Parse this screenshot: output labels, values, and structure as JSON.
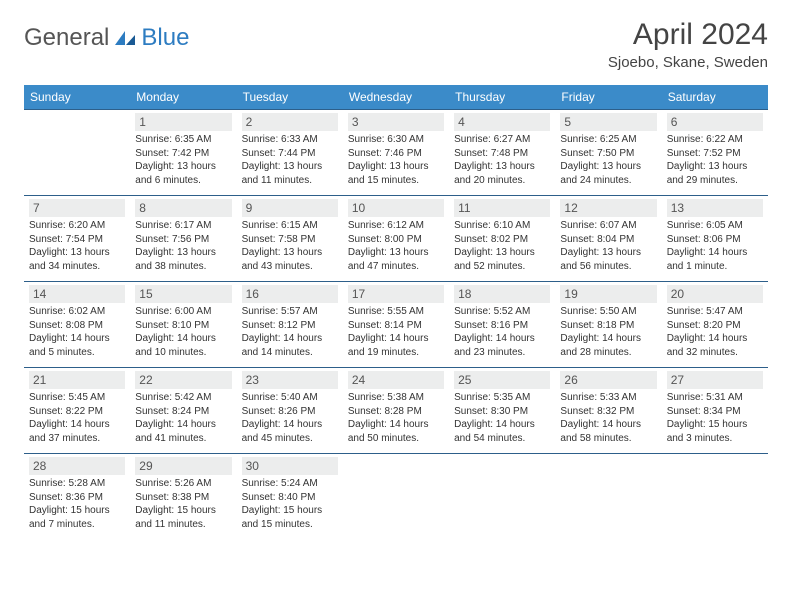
{
  "brand": {
    "name_a": "General",
    "name_b": "Blue"
  },
  "title": "April 2024",
  "location": "Sjoebo, Skane, Sweden",
  "header_bg": "#3b8bc9",
  "weekdays": [
    "Sunday",
    "Monday",
    "Tuesday",
    "Wednesday",
    "Thursday",
    "Friday",
    "Saturday"
  ],
  "weeks": [
    [
      {
        "n": "",
        "sr": "",
        "ss": "",
        "dl": ""
      },
      {
        "n": "1",
        "sr": "Sunrise: 6:35 AM",
        "ss": "Sunset: 7:42 PM",
        "dl": "Daylight: 13 hours and 6 minutes."
      },
      {
        "n": "2",
        "sr": "Sunrise: 6:33 AM",
        "ss": "Sunset: 7:44 PM",
        "dl": "Daylight: 13 hours and 11 minutes."
      },
      {
        "n": "3",
        "sr": "Sunrise: 6:30 AM",
        "ss": "Sunset: 7:46 PM",
        "dl": "Daylight: 13 hours and 15 minutes."
      },
      {
        "n": "4",
        "sr": "Sunrise: 6:27 AM",
        "ss": "Sunset: 7:48 PM",
        "dl": "Daylight: 13 hours and 20 minutes."
      },
      {
        "n": "5",
        "sr": "Sunrise: 6:25 AM",
        "ss": "Sunset: 7:50 PM",
        "dl": "Daylight: 13 hours and 24 minutes."
      },
      {
        "n": "6",
        "sr": "Sunrise: 6:22 AM",
        "ss": "Sunset: 7:52 PM",
        "dl": "Daylight: 13 hours and 29 minutes."
      }
    ],
    [
      {
        "n": "7",
        "sr": "Sunrise: 6:20 AM",
        "ss": "Sunset: 7:54 PM",
        "dl": "Daylight: 13 hours and 34 minutes."
      },
      {
        "n": "8",
        "sr": "Sunrise: 6:17 AM",
        "ss": "Sunset: 7:56 PM",
        "dl": "Daylight: 13 hours and 38 minutes."
      },
      {
        "n": "9",
        "sr": "Sunrise: 6:15 AM",
        "ss": "Sunset: 7:58 PM",
        "dl": "Daylight: 13 hours and 43 minutes."
      },
      {
        "n": "10",
        "sr": "Sunrise: 6:12 AM",
        "ss": "Sunset: 8:00 PM",
        "dl": "Daylight: 13 hours and 47 minutes."
      },
      {
        "n": "11",
        "sr": "Sunrise: 6:10 AM",
        "ss": "Sunset: 8:02 PM",
        "dl": "Daylight: 13 hours and 52 minutes."
      },
      {
        "n": "12",
        "sr": "Sunrise: 6:07 AM",
        "ss": "Sunset: 8:04 PM",
        "dl": "Daylight: 13 hours and 56 minutes."
      },
      {
        "n": "13",
        "sr": "Sunrise: 6:05 AM",
        "ss": "Sunset: 8:06 PM",
        "dl": "Daylight: 14 hours and 1 minute."
      }
    ],
    [
      {
        "n": "14",
        "sr": "Sunrise: 6:02 AM",
        "ss": "Sunset: 8:08 PM",
        "dl": "Daylight: 14 hours and 5 minutes."
      },
      {
        "n": "15",
        "sr": "Sunrise: 6:00 AM",
        "ss": "Sunset: 8:10 PM",
        "dl": "Daylight: 14 hours and 10 minutes."
      },
      {
        "n": "16",
        "sr": "Sunrise: 5:57 AM",
        "ss": "Sunset: 8:12 PM",
        "dl": "Daylight: 14 hours and 14 minutes."
      },
      {
        "n": "17",
        "sr": "Sunrise: 5:55 AM",
        "ss": "Sunset: 8:14 PM",
        "dl": "Daylight: 14 hours and 19 minutes."
      },
      {
        "n": "18",
        "sr": "Sunrise: 5:52 AM",
        "ss": "Sunset: 8:16 PM",
        "dl": "Daylight: 14 hours and 23 minutes."
      },
      {
        "n": "19",
        "sr": "Sunrise: 5:50 AM",
        "ss": "Sunset: 8:18 PM",
        "dl": "Daylight: 14 hours and 28 minutes."
      },
      {
        "n": "20",
        "sr": "Sunrise: 5:47 AM",
        "ss": "Sunset: 8:20 PM",
        "dl": "Daylight: 14 hours and 32 minutes."
      }
    ],
    [
      {
        "n": "21",
        "sr": "Sunrise: 5:45 AM",
        "ss": "Sunset: 8:22 PM",
        "dl": "Daylight: 14 hours and 37 minutes."
      },
      {
        "n": "22",
        "sr": "Sunrise: 5:42 AM",
        "ss": "Sunset: 8:24 PM",
        "dl": "Daylight: 14 hours and 41 minutes."
      },
      {
        "n": "23",
        "sr": "Sunrise: 5:40 AM",
        "ss": "Sunset: 8:26 PM",
        "dl": "Daylight: 14 hours and 45 minutes."
      },
      {
        "n": "24",
        "sr": "Sunrise: 5:38 AM",
        "ss": "Sunset: 8:28 PM",
        "dl": "Daylight: 14 hours and 50 minutes."
      },
      {
        "n": "25",
        "sr": "Sunrise: 5:35 AM",
        "ss": "Sunset: 8:30 PM",
        "dl": "Daylight: 14 hours and 54 minutes."
      },
      {
        "n": "26",
        "sr": "Sunrise: 5:33 AM",
        "ss": "Sunset: 8:32 PM",
        "dl": "Daylight: 14 hours and 58 minutes."
      },
      {
        "n": "27",
        "sr": "Sunrise: 5:31 AM",
        "ss": "Sunset: 8:34 PM",
        "dl": "Daylight: 15 hours and 3 minutes."
      }
    ],
    [
      {
        "n": "28",
        "sr": "Sunrise: 5:28 AM",
        "ss": "Sunset: 8:36 PM",
        "dl": "Daylight: 15 hours and 7 minutes."
      },
      {
        "n": "29",
        "sr": "Sunrise: 5:26 AM",
        "ss": "Sunset: 8:38 PM",
        "dl": "Daylight: 15 hours and 11 minutes."
      },
      {
        "n": "30",
        "sr": "Sunrise: 5:24 AM",
        "ss": "Sunset: 8:40 PM",
        "dl": "Daylight: 15 hours and 15 minutes."
      },
      {
        "n": "",
        "sr": "",
        "ss": "",
        "dl": ""
      },
      {
        "n": "",
        "sr": "",
        "ss": "",
        "dl": ""
      },
      {
        "n": "",
        "sr": "",
        "ss": "",
        "dl": ""
      },
      {
        "n": "",
        "sr": "",
        "ss": "",
        "dl": ""
      }
    ]
  ]
}
